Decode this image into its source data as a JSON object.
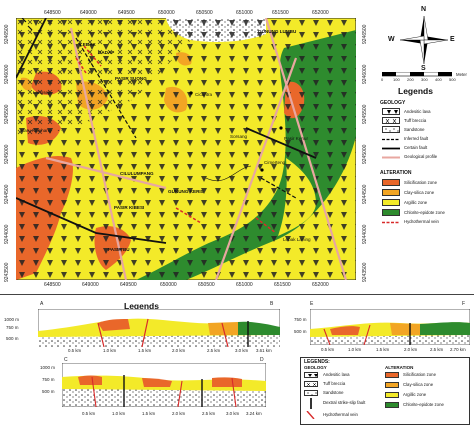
{
  "map": {
    "top_ticks": [
      "648500",
      "649000",
      "649500",
      "650000",
      "650500",
      "651000",
      "651500",
      "652000"
    ],
    "bottom_ticks": [
      "648500",
      "649000",
      "649500",
      "650000",
      "650500",
      "651000",
      "651500",
      "652000"
    ],
    "left_ticks": [
      "9246500",
      "9246000",
      "9245500",
      "9245000",
      "9244500",
      "9244000",
      "9243500"
    ],
    "right_ticks": [
      "9246500",
      "9246000",
      "9245500",
      "9245000",
      "9244500",
      "9244000",
      "9243500"
    ],
    "places": {
      "lebak": "LEBAK",
      "dadap": "DADAP",
      "gunung_lumbu": "GUNUNG LUMBU",
      "pasir_suong": "PASIR SUONG",
      "langsep": "Langsep",
      "karu_kalehang": "Karu Kalehang",
      "cicantra": "Cicantra",
      "sorsang": "Sorsang",
      "pasir_kenur": "Pasir Kenur",
      "cimerteng": "Cimerteng",
      "ciululumpang": "CILULUMPANG",
      "gunung_keris": "GUNUNG KERIS",
      "pasir_kibesi": "PASIR KIBESI",
      "pasir_bu": "PASIR BU",
      "lebak_lanang": "Lebak Laning"
    }
  },
  "compass": {
    "n": "N",
    "s": "S",
    "e": "E",
    "w": "W"
  },
  "scale": {
    "ticks": [
      "0",
      "100",
      "200",
      "300",
      "400",
      "500"
    ],
    "unit": "Meter"
  },
  "legend_right": {
    "title": "Legends",
    "geology_heading": "GEOLOGY",
    "geology_items": [
      "Andesitic lava",
      "Tuff breccia",
      "Sandstone",
      "Inferred fault",
      "Certain fault",
      "Geological profile"
    ],
    "alteration_heading": "ALTERATION",
    "alteration_items": [
      "Silicification zone",
      "Clay-silica zone",
      "Argillic zone",
      "Chlorite-epidote zone",
      "Hydrothermal vein"
    ]
  },
  "profiles": {
    "ab": {
      "title": "Legends",
      "start": "A",
      "end": "B",
      "elev": [
        "1000 m",
        "750 m",
        "500 m"
      ],
      "dist": [
        "0.5 km",
        "1.0 km",
        "1.5 km",
        "2.0 km",
        "2.5 km",
        "3.0 km",
        "3.61 km"
      ]
    },
    "ef": {
      "start": "E",
      "end": "F",
      "elev": [
        "750 m",
        "500 m"
      ],
      "dist": [
        "0.5 km",
        "1.0 km",
        "1.5 km",
        "2.0 km",
        "2.5 km",
        "2.70 km"
      ]
    },
    "cd": {
      "start": "C",
      "end": "D",
      "elev": [
        "1000 m",
        "750 m",
        "500 m"
      ],
      "dist": [
        "0.5 km",
        "1.0 km",
        "1.5 km",
        "2.0 km",
        "2.5 km",
        "3.0 km",
        "3.24 km"
      ]
    }
  },
  "legend_bottom": {
    "title": "LEGENDS:",
    "geology_heading": "GEOLOGY",
    "geology_items": [
      "Andesitic lava",
      "Tuff breccia",
      "Sandstone",
      "Dextral strike-slip fault",
      "Hydrothermal vein"
    ],
    "alteration_heading": "ALTERATION",
    "alteration_items": [
      "Silicification zone",
      "Clay-silica zone",
      "Argillic zone",
      "Chlorite-epidote zone"
    ]
  },
  "colors": {
    "argillic": "#f3ea29",
    "chlorite": "#2e8b2e",
    "silicification": "#e9672a",
    "clay_silica": "#f2a524",
    "fault": "#111111",
    "profile_line": "#e8a7a0",
    "vein": "#d82a2a"
  }
}
